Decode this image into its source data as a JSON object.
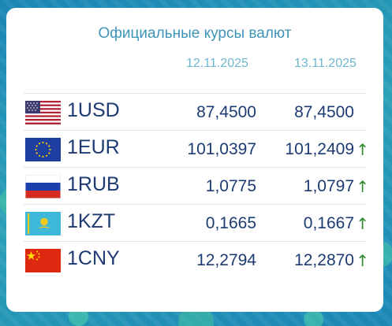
{
  "widget": {
    "title": "Официальные курсы валют",
    "dates": [
      "12.11.2025",
      "13.11.2025"
    ]
  },
  "rates": [
    {
      "code": "1USD",
      "flag": "usa-flag-icon",
      "prev": "87,4500",
      "curr": "87,4500",
      "trend": ""
    },
    {
      "code": "1EUR",
      "flag": "eu-flag-icon",
      "prev": "101,0397",
      "curr": "101,2409",
      "trend": "↑"
    },
    {
      "code": "1RUB",
      "flag": "russia-flag-icon",
      "prev": "1,0775",
      "curr": "1,0797",
      "trend": "↑"
    },
    {
      "code": "1KZT",
      "flag": "kazakhstan-flag-icon",
      "prev": "0,1665",
      "curr": "0,1667",
      "trend": "↑"
    },
    {
      "code": "1CNY",
      "flag": "china-flag-icon",
      "prev": "12,2794",
      "curr": "12,2870",
      "trend": "↑"
    }
  ],
  "colors": {
    "text": "#1d3b72",
    "title": "#3f95b8",
    "date": "#6fb7cf",
    "up_arrow": "#2e8b2e"
  }
}
